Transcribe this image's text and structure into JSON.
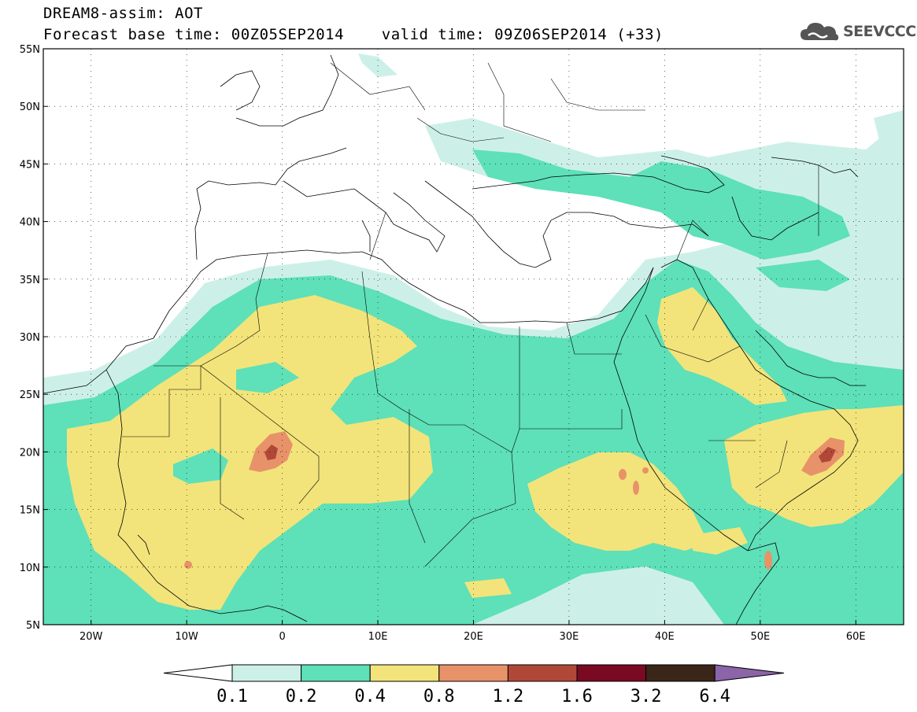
{
  "header": {
    "line1": "DREAM8-assim: AOT",
    "line2": "Forecast base time: 00Z05SEP2014    valid time: 09Z06SEP2014 (+33)"
  },
  "logo": {
    "text": "SEEVCCC",
    "icon": "cloud-icon"
  },
  "map": {
    "projection": "lat-lon",
    "lon_range": [
      -25,
      65
    ],
    "lat_range": [
      5,
      55
    ],
    "gridlines": "dotted",
    "x_ticks": [
      "20W",
      "10W",
      "0",
      "10E",
      "20E",
      "30E",
      "40E",
      "50E",
      "60E"
    ],
    "y_ticks": [
      "55N",
      "50N",
      "45N",
      "40N",
      "35N",
      "30N",
      "25N",
      "20N",
      "15N",
      "10N",
      "5N"
    ]
  },
  "colorbar": {
    "levels": [
      "0.1",
      "0.2",
      "0.4",
      "0.8",
      "1.2",
      "1.6",
      "3.2",
      "6.4"
    ],
    "colors": [
      "#ffffff",
      "#ccf0e8",
      "#5ee0b8",
      "#f2e47a",
      "#e8926a",
      "#b04838",
      "#7a0a22",
      "#3a2618",
      "#8c64a8"
    ]
  },
  "chart_data": {
    "type": "heatmap",
    "variable": "AOT",
    "contour_levels": [
      0.1,
      0.2,
      0.4,
      0.8,
      1.2,
      1.6,
      3.2,
      6.4
    ],
    "hotspots": [
      {
        "lon": -1,
        "lat": 20,
        "max_class": "1.2-1.6"
      },
      {
        "lon": 56.5,
        "lat": 19.5,
        "max_class": "1.2-1.6"
      },
      {
        "lon": 36,
        "lat": 17.5,
        "max_class": "0.8-1.2"
      },
      {
        "lon": 49,
        "lat": 10.5,
        "max_class": "0.8-1.2"
      },
      {
        "lon": -9.5,
        "lat": 10.5,
        "max_class": "0.8-1.2"
      }
    ]
  }
}
